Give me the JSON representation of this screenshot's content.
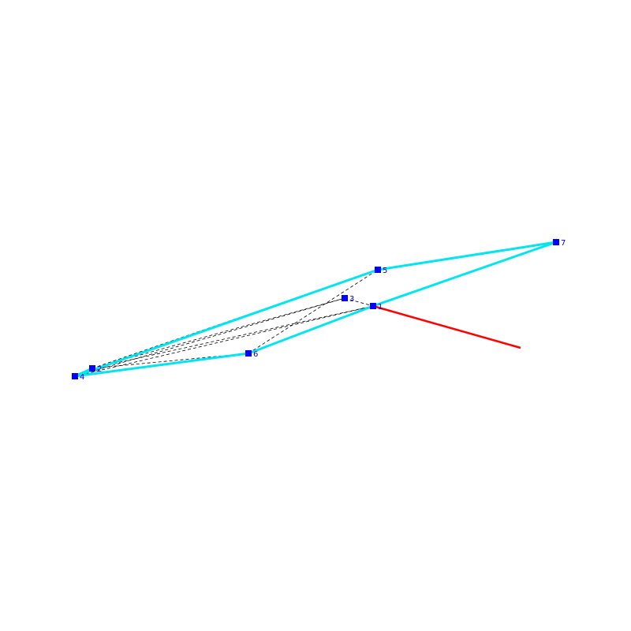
{
  "colors": {
    "background": "#ffffff",
    "hull_edge": "#00e5ee",
    "inner_edge": "#000000",
    "vertex_marker": "#0000ff",
    "vertex_label": "#0000cc",
    "normal_vector": "#ff0000"
  },
  "vertices": [
    {
      "id": "1",
      "label": "1"
    },
    {
      "id": "2",
      "label": "2"
    },
    {
      "id": "3",
      "label": "3"
    },
    {
      "id": "4",
      "label": "4"
    },
    {
      "id": "5",
      "label": "5"
    },
    {
      "id": "6",
      "label": "6"
    },
    {
      "id": "7",
      "label": "7"
    }
  ],
  "hull_edges": [
    [
      "4",
      "5"
    ],
    [
      "5",
      "7"
    ],
    [
      "7",
      "1"
    ],
    [
      "1",
      "6"
    ],
    [
      "6",
      "4"
    ],
    [
      "2",
      "4"
    ]
  ],
  "inner_edges": [
    [
      "2",
      "3"
    ],
    [
      "2",
      "1"
    ],
    [
      "2",
      "5"
    ],
    [
      "4",
      "3"
    ],
    [
      "4",
      "1"
    ],
    [
      "6",
      "5"
    ],
    [
      "3",
      "1"
    ],
    [
      "2",
      "6"
    ]
  ],
  "normal_vector": {
    "from": "1"
  }
}
